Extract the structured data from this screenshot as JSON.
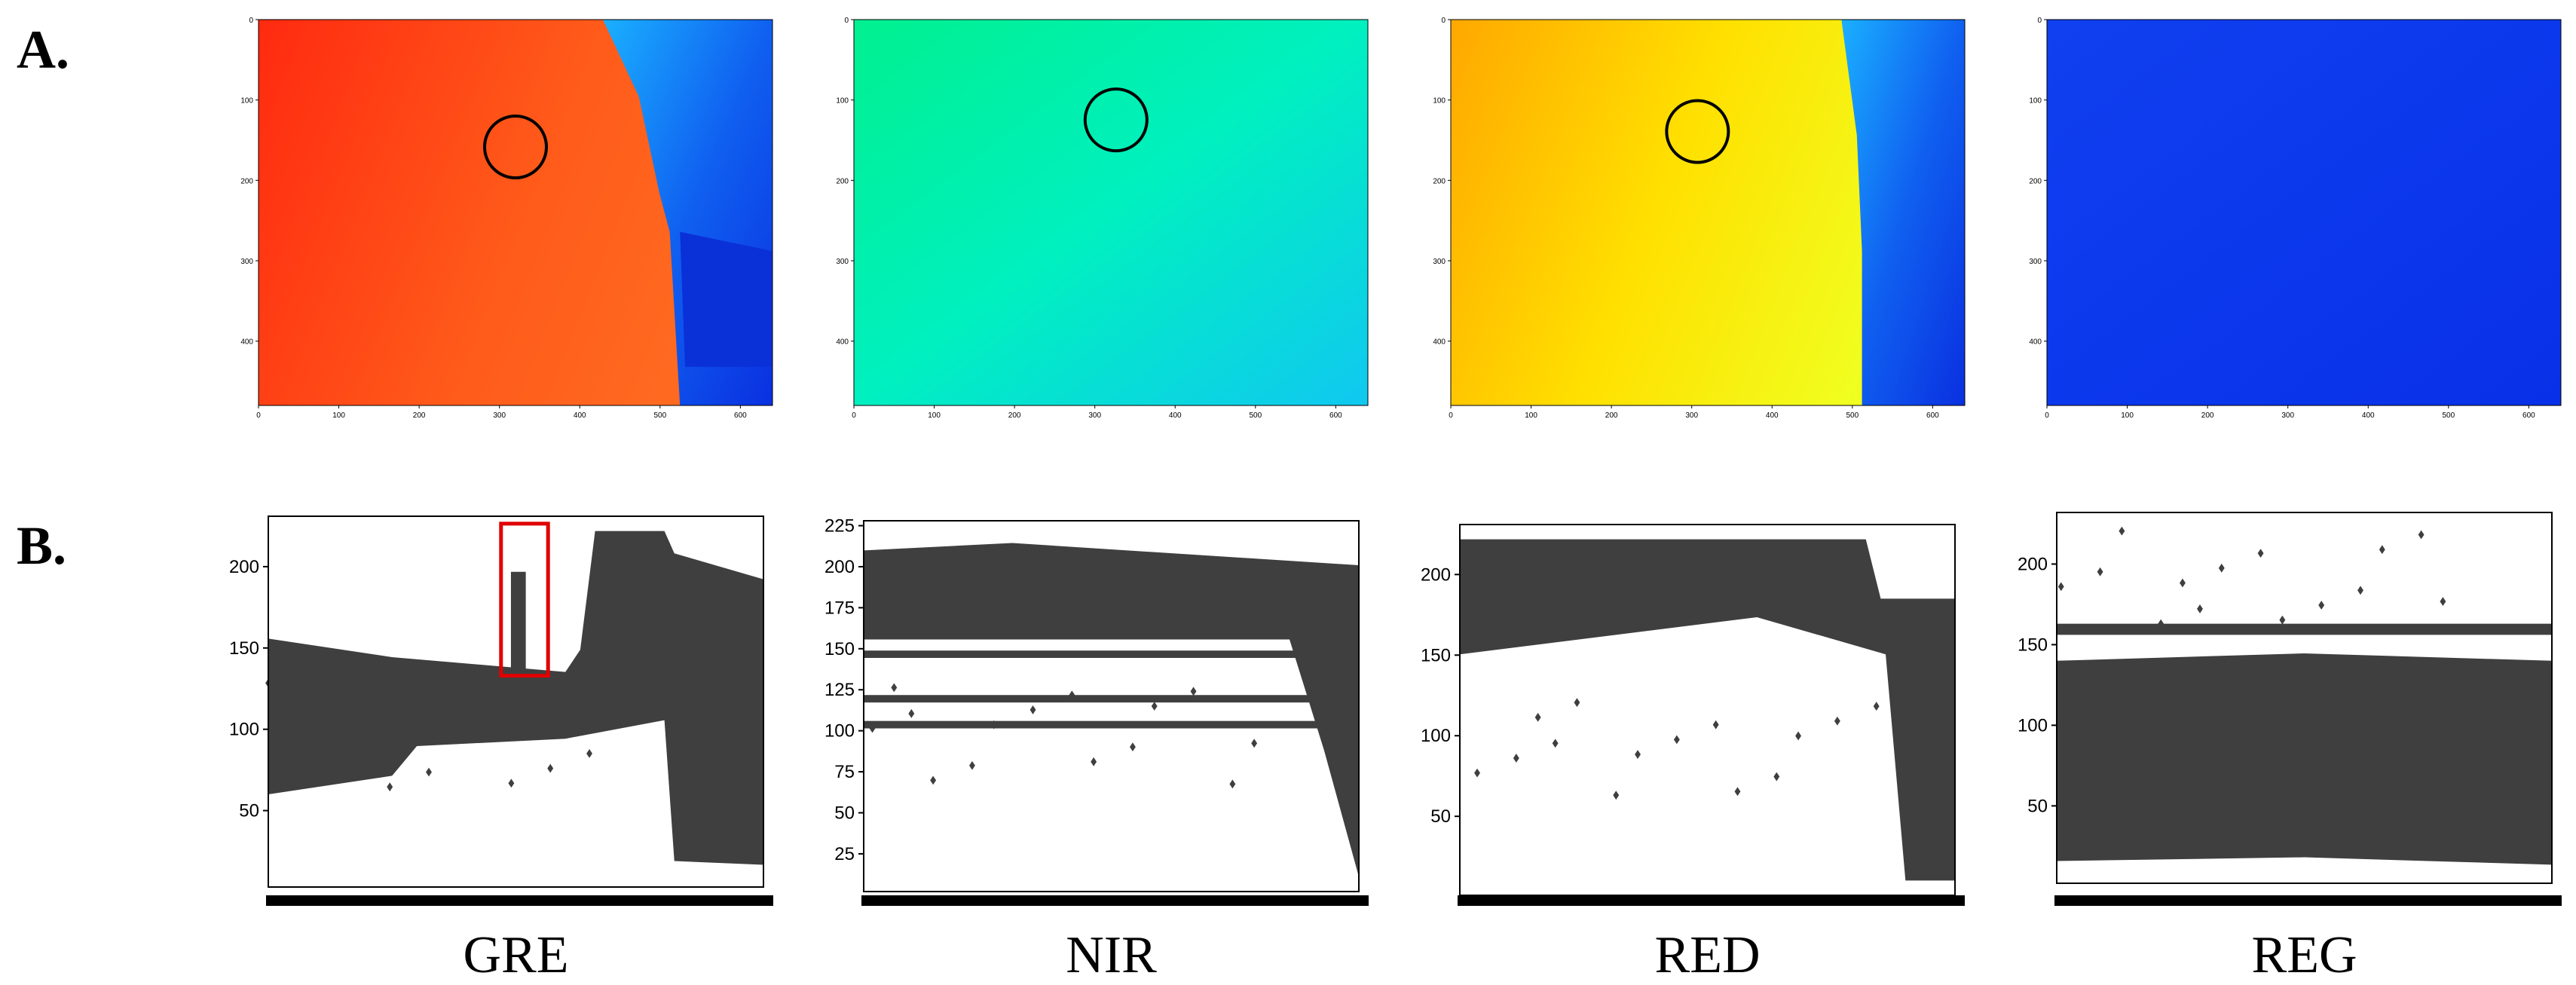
{
  "panel_labels": [
    "A.",
    "B."
  ],
  "heatmaps": [
    {
      "xlim": [
        0,
        640
      ],
      "ylim": [
        0,
        480
      ],
      "xticks": [
        0,
        100,
        200,
        300,
        400,
        500,
        600
      ],
      "yticks": [
        0,
        100,
        200,
        300,
        400
      ]
    },
    {
      "xlim": [
        0,
        640
      ],
      "ylim": [
        0,
        480
      ],
      "xticks": [
        0,
        100,
        200,
        300,
        400,
        500,
        600
      ],
      "yticks": [
        0,
        100,
        200,
        300,
        400
      ]
    },
    {
      "xlim": [
        0,
        640
      ],
      "ylim": [
        0,
        480
      ],
      "xticks": [
        0,
        100,
        200,
        300,
        400,
        500,
        600
      ],
      "yticks": [
        0,
        100,
        200,
        300,
        400
      ]
    },
    {
      "xlim": [
        0,
        640
      ],
      "ylim": [
        0,
        480
      ],
      "xticks": [
        0,
        100,
        200,
        300,
        400,
        500,
        600
      ],
      "yticks": [
        0,
        100,
        200,
        300,
        400
      ]
    }
  ],
  "boxplots": [
    {
      "label": "GRE",
      "ylim": [
        3,
        231
      ],
      "yticks": [
        50,
        100,
        150,
        200
      ]
    },
    {
      "label": "NIR",
      "ylim": [
        2,
        228
      ],
      "yticks": [
        25,
        50,
        75,
        100,
        125,
        150,
        175,
        200,
        225
      ]
    },
    {
      "label": "RED",
      "ylim": [
        1,
        231
      ],
      "yticks": [
        50,
        100,
        150,
        200
      ]
    },
    {
      "label": "REG",
      "ylim": [
        2,
        232
      ],
      "yticks": [
        50,
        100,
        150,
        200
      ]
    }
  ]
}
